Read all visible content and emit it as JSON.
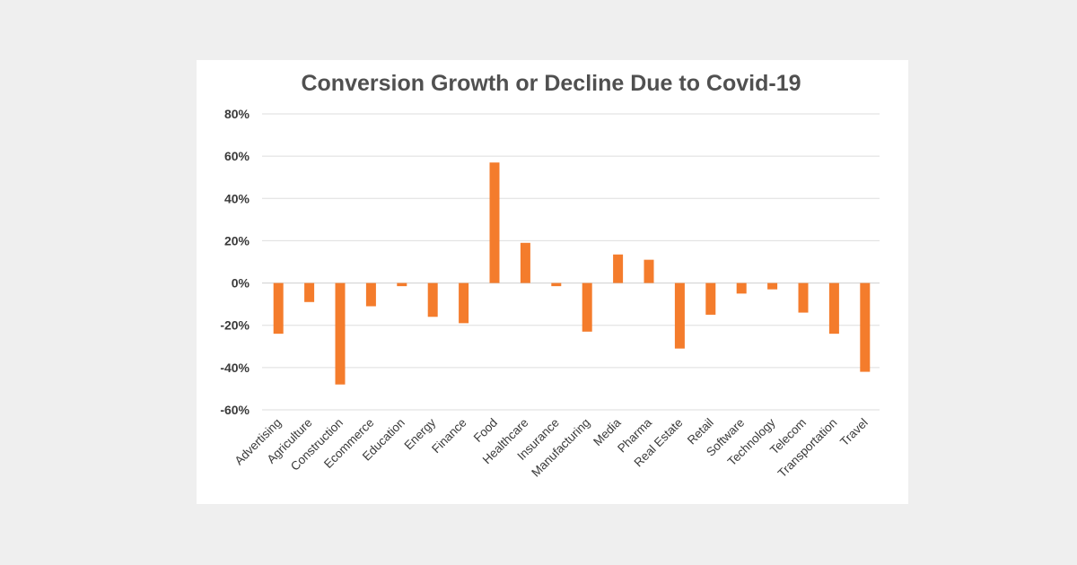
{
  "chart_data": {
    "type": "bar",
    "title": "Conversion Growth or Decline Due to Covid-19",
    "categories": [
      "Advertising",
      "Agriculture",
      "Construction",
      "Ecommerce",
      "Education",
      "Energy",
      "Finance",
      "Food",
      "Healthcare",
      "Insurance",
      "Manufacturing",
      "Media",
      "Pharma",
      "Real Estate",
      "Retail",
      "Software",
      "Technology",
      "Telecom",
      "Transportation",
      "Travel"
    ],
    "values": [
      -24,
      -9,
      -48,
      -11,
      -1.5,
      -16,
      -19,
      57,
      19,
      -1.5,
      -23,
      13.5,
      11,
      -31,
      -15,
      -5,
      -3,
      -14,
      -24,
      -42
    ],
    "yticks": [
      "80%",
      "60%",
      "40%",
      "20%",
      "0%",
      "-20%",
      "-40%",
      "-60%"
    ],
    "ylim": [
      -60,
      80
    ],
    "xlabel": "",
    "ylabel": "",
    "grid": true,
    "bar_color": "#f47c2c"
  }
}
